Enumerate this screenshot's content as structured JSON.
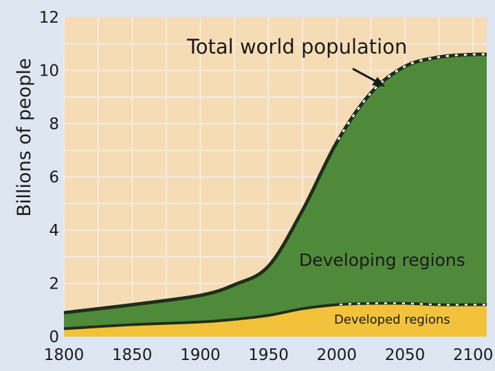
{
  "chart_data": {
    "type": "area",
    "ylabel": "Billions of people",
    "xlabel": "",
    "title": "",
    "xlim": [
      1800,
      2110
    ],
    "ylim": [
      0,
      12
    ],
    "x_ticks": [
      "1800",
      "1850",
      "1900",
      "1950",
      "2000",
      "2050",
      "2100"
    ],
    "y_ticks": [
      "0",
      "2",
      "4",
      "6",
      "8",
      "10",
      "12"
    ],
    "grid": true,
    "stacked": true,
    "series": [
      {
        "name": "Developed regions",
        "color": "#f2c33a",
        "x": [
          1800,
          1850,
          1900,
          1925,
          1950,
          1975,
          2000,
          2025,
          2050,
          2075,
          2100,
          2110
        ],
        "y": [
          0.3,
          0.45,
          0.55,
          0.65,
          0.8,
          1.05,
          1.2,
          1.25,
          1.25,
          1.2,
          1.2,
          1.2
        ]
      },
      {
        "name": "Developing regions",
        "color": "#4f8a3a",
        "x": [
          1800,
          1850,
          1900,
          1925,
          1950,
          1975,
          2000,
          2025,
          2050,
          2075,
          2100,
          2110
        ],
        "y": [
          0.6,
          0.75,
          1.0,
          1.3,
          1.85,
          3.7,
          6.1,
          7.9,
          8.9,
          9.3,
          9.4,
          9.4
        ]
      }
    ],
    "total": {
      "name": "Total world population",
      "x": [
        1800,
        1850,
        1900,
        1925,
        1950,
        1975,
        2000,
        2025,
        2050,
        2075,
        2100,
        2110
      ],
      "y": [
        0.9,
        1.2,
        1.55,
        1.95,
        2.65,
        4.75,
        7.3,
        9.15,
        10.15,
        10.5,
        10.6,
        10.6
      ]
    },
    "annotations": {
      "total_label": "Total world population",
      "developing_label": "Developing regions",
      "developed_label": "Developed regions"
    },
    "colors": {
      "plot_background": "#f6dcb4",
      "boundary": "#1f2e1a",
      "dashes": "#ffffff"
    }
  }
}
